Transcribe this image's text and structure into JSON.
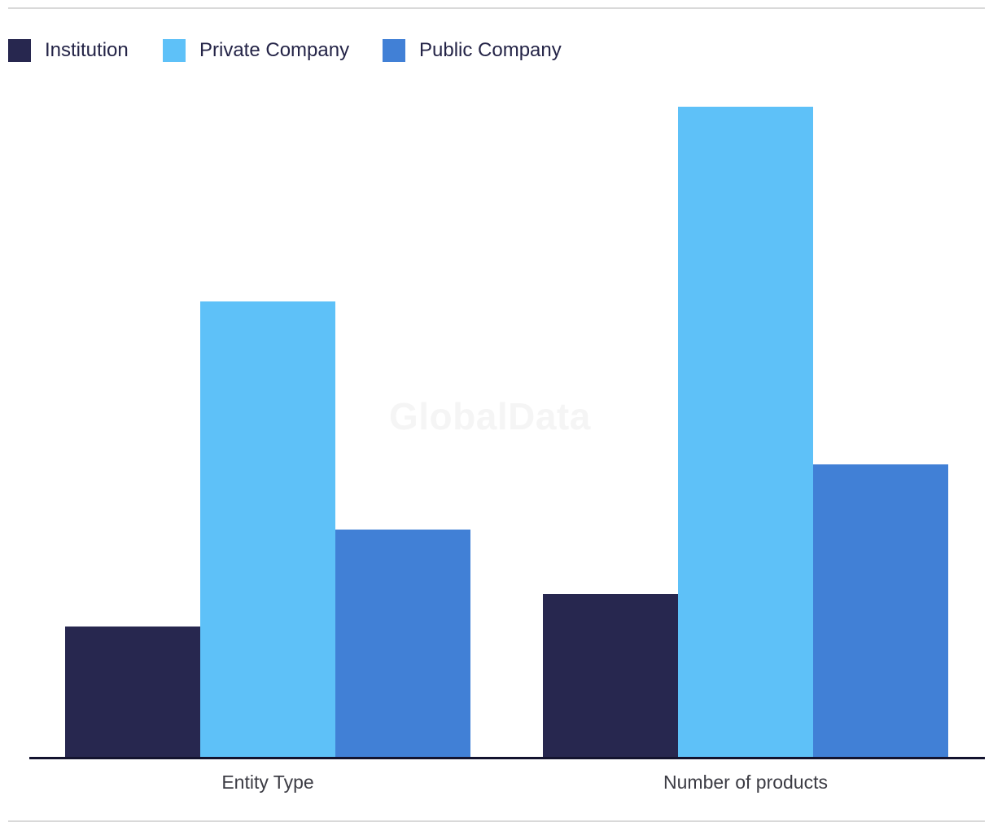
{
  "watermark": {
    "text": "GlobalData"
  },
  "legend": {
    "position": "top",
    "items": [
      {
        "label": "Institution",
        "color": "#27274F"
      },
      {
        "label": "Private Company",
        "color": "#5EC1F8"
      },
      {
        "label": "Public Company",
        "color": "#4180D6"
      }
    ]
  },
  "chart_data": {
    "type": "bar",
    "categories": [
      "Entity Type",
      "Number of products"
    ],
    "series": [
      {
        "name": "Institution",
        "color": "#27274F",
        "values": [
          4,
          5
        ]
      },
      {
        "name": "Private Company",
        "color": "#5EC1F8",
        "values": [
          14,
          20
        ]
      },
      {
        "name": "Public Company",
        "color": "#4180D6",
        "values": [
          7,
          9
        ]
      }
    ],
    "title": "",
    "xlabel": "",
    "ylabel": "",
    "ylim": [
      0,
      20
    ],
    "grid": false,
    "yaxis_visible": false,
    "legend_position": "top",
    "colors": {
      "axis_line": "#13132E",
      "axis_label_text": "#3C3C44",
      "legend_text": "#242447",
      "divider": "#D9D9D9",
      "watermark": "#F5F5F5",
      "background": "#FFFFFF"
    }
  }
}
